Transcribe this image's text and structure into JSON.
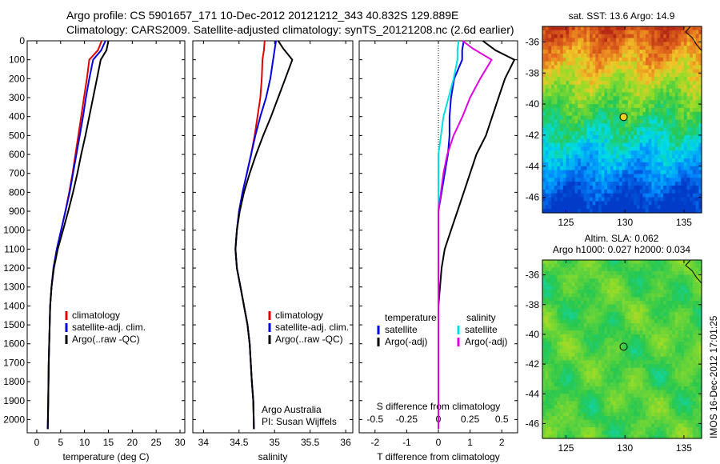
{
  "titles": {
    "line1": "Argo profile: CS 5901657_171 10-Dec-2012 20121212_343 40.832S 129.889E",
    "line2": "Climatology: CARS2009. Satellite-adjusted climatology: synTS_20121208.nc (2.6d earlier)"
  },
  "colors": {
    "climatology": "#e00000",
    "satellite": "#0000e0",
    "argo": "#000000",
    "sal_satellite": "#00e0e0",
    "sal_argo": "#e000e0"
  },
  "depth_ticks": [
    "0",
    "100",
    "200",
    "300",
    "400",
    "500",
    "600",
    "700",
    "800",
    "900",
    "1000",
    "1100",
    "1200",
    "1300",
    "1400",
    "1500",
    "1600",
    "1700",
    "1800",
    "1900",
    "2000"
  ],
  "chart_data": [
    {
      "type": "line",
      "xlabel": "temperature (deg C)",
      "xticks": [
        "0",
        "5",
        "10",
        "15",
        "20",
        "25",
        "30"
      ],
      "xlim": [
        -2,
        31
      ],
      "ylim": [
        2070,
        0
      ],
      "legend": [
        "climatology",
        "satellite-adj. clim.",
        "Argo(..raw -QC)"
      ],
      "series": [
        {
          "name": "climatology",
          "x": [
            13.6,
            12.8,
            11.0,
            10.5,
            9.9,
            9.3,
            8.7,
            8.1,
            7.5,
            6.8,
            6.0,
            5.1,
            4.2,
            3.5,
            3.1,
            2.8,
            2.7,
            2.6,
            2.5,
            2.4,
            2.3
          ],
          "y": [
            0,
            50,
            100,
            200,
            300,
            400,
            500,
            600,
            700,
            800,
            900,
            1000,
            1100,
            1200,
            1300,
            1400,
            1500,
            1600,
            1700,
            1900,
            2050
          ]
        },
        {
          "name": "satellite-adj. clim.",
          "x": [
            14.4,
            13.5,
            11.8,
            11.0,
            10.3,
            9.7,
            9.0,
            8.3,
            7.6,
            6.9,
            6.0,
            5.1,
            4.2,
            3.5,
            3.1,
            2.8,
            2.7,
            2.6,
            2.5,
            2.4,
            2.3
          ],
          "y": [
            0,
            50,
            100,
            200,
            300,
            400,
            500,
            600,
            700,
            800,
            900,
            1000,
            1100,
            1200,
            1300,
            1400,
            1500,
            1600,
            1700,
            1900,
            2050
          ]
        },
        {
          "name": "Argo(..raw -QC)",
          "x": [
            15.0,
            14.6,
            13.4,
            12.6,
            11.8,
            11.0,
            10.2,
            9.3,
            8.5,
            7.6,
            6.6,
            5.5,
            4.4,
            3.6,
            3.1,
            2.8,
            2.7,
            2.6,
            2.5,
            2.4,
            2.3
          ],
          "y": [
            0,
            50,
            100,
            200,
            300,
            400,
            500,
            600,
            700,
            800,
            900,
            1000,
            1100,
            1200,
            1300,
            1400,
            1500,
            1600,
            1700,
            1900,
            2050
          ]
        }
      ]
    },
    {
      "type": "line",
      "xlabel": "salinity",
      "xticks": [
        "34",
        "34.5",
        "35",
        "35.5",
        "36"
      ],
      "xlim": [
        33.85,
        36.1
      ],
      "ylim": [
        2070,
        0
      ],
      "legend": [
        "climatology",
        "satellite-adj. clim.",
        "Argo(..raw -QC)"
      ],
      "annotation": [
        "Argo Australia",
        "PI: Susan Wijffels"
      ],
      "series": [
        {
          "name": "climatology",
          "x": [
            34.86,
            34.85,
            34.83,
            34.82,
            34.8,
            34.76,
            34.72,
            34.67,
            34.61,
            34.55,
            34.5,
            34.47,
            34.45,
            34.47,
            34.52,
            34.57,
            34.62,
            34.65,
            34.68,
            34.7,
            34.71
          ],
          "y": [
            0,
            50,
            100,
            200,
            300,
            400,
            500,
            600,
            700,
            800,
            900,
            1000,
            1100,
            1200,
            1300,
            1400,
            1500,
            1600,
            1800,
            1900,
            2050
          ]
        },
        {
          "name": "satellite-adj. clim.",
          "x": [
            35.02,
            35.0,
            34.98,
            34.94,
            34.88,
            34.8,
            34.73,
            34.67,
            34.61,
            34.55,
            34.5,
            34.47,
            34.45,
            34.47,
            34.52,
            34.57,
            34.62,
            34.65,
            34.68,
            34.7,
            34.71
          ],
          "y": [
            0,
            50,
            100,
            200,
            300,
            400,
            500,
            600,
            700,
            800,
            900,
            1000,
            1100,
            1200,
            1300,
            1400,
            1500,
            1600,
            1800,
            1900,
            2050
          ]
        },
        {
          "name": "Argo(..raw -QC)",
          "x": [
            35.05,
            35.12,
            35.25,
            35.15,
            35.05,
            34.95,
            34.84,
            34.74,
            34.65,
            34.57,
            34.51,
            34.47,
            34.45,
            34.47,
            34.52,
            34.57,
            34.62,
            34.65,
            34.68,
            34.7,
            34.71
          ],
          "y": [
            0,
            40,
            100,
            200,
            300,
            400,
            500,
            600,
            700,
            800,
            900,
            1000,
            1100,
            1200,
            1300,
            1400,
            1500,
            1600,
            1800,
            1900,
            2050
          ]
        }
      ]
    },
    {
      "type": "line",
      "xlabel": "T difference from climatology",
      "xlabel_top": "S difference from climatology",
      "xticks": [
        "-2",
        "-1",
        "0",
        "1",
        "2"
      ],
      "xticks_top": [
        "-0.5",
        "-0.25",
        "0",
        "0.25",
        "0.5"
      ],
      "xlim": [
        -2.5,
        2.5
      ],
      "ylim": [
        2070,
        0
      ],
      "legend_temperature": {
        "title": "temperature",
        "items": [
          "satellite",
          "Argo(-adj)"
        ]
      },
      "legend_salinity": {
        "title": "salinity",
        "items": [
          "satellite",
          "Argo(-adj)"
        ]
      },
      "series": [
        {
          "name": "T satellite",
          "x": [
            0.8,
            0.75,
            0.75,
            0.5,
            0.4,
            0.35,
            0.35,
            0.3,
            0.2,
            0.1,
            0.0,
            0.0,
            0.0,
            0.0,
            0.0,
            0.0,
            0.0,
            0.0
          ],
          "y": [
            0,
            50,
            100,
            200,
            300,
            400,
            500,
            600,
            700,
            800,
            900,
            1000,
            1100,
            1200,
            1400,
            1600,
            1800,
            2050
          ]
        },
        {
          "name": "T Argo(-adj)",
          "x": [
            1.4,
            1.8,
            2.4,
            2.1,
            1.9,
            1.7,
            1.5,
            1.2,
            1.0,
            0.8,
            0.6,
            0.4,
            0.2,
            0.1,
            0.0,
            0.0,
            0.0,
            0.0
          ],
          "y": [
            0,
            50,
            100,
            200,
            300,
            400,
            500,
            600,
            700,
            800,
            900,
            1000,
            1100,
            1200,
            1400,
            1600,
            1800,
            2050
          ]
        },
        {
          "name": "S satellite",
          "x": [
            0.16,
            0.15,
            0.15,
            0.12,
            0.08,
            0.04,
            0.02,
            0.0,
            0.0,
            0.0,
            0.0,
            0.0,
            0.0
          ],
          "y": [
            0,
            50,
            100,
            200,
            300,
            400,
            500,
            600,
            800,
            1000,
            1400,
            1800,
            2050
          ]
        },
        {
          "name": "S Argo(-adj)",
          "x": [
            0.19,
            0.27,
            0.42,
            0.33,
            0.25,
            0.19,
            0.12,
            0.07,
            0.04,
            0.0,
            0.0,
            0.0
          ],
          "y": [
            0,
            40,
            100,
            200,
            300,
            400,
            500,
            600,
            700,
            900,
            1400,
            2050
          ]
        }
      ]
    },
    {
      "type": "heatmap",
      "title": "sat. SST: 13.6  Argo: 14.9",
      "xticks": [
        "125",
        "130",
        "135"
      ],
      "yticks": [
        "-36",
        "-38",
        "-40",
        "-42",
        "-44",
        "-46"
      ],
      "xlim": [
        123,
        136.5
      ],
      "ylim": [
        -47,
        -35
      ],
      "marker": {
        "lon": 129.889,
        "lat": -40.832
      }
    },
    {
      "type": "heatmap",
      "title": "Altim. SLA: 0.062",
      "subtitle": "Argo h1000: 0.027  h2000: 0.034",
      "xticks": [
        "125",
        "130",
        "135"
      ],
      "yticks": [
        "-36",
        "-38",
        "-40",
        "-42",
        "-44",
        "-46"
      ],
      "xlim": [
        123,
        136.5
      ],
      "ylim": [
        -47,
        -35
      ],
      "marker": {
        "lon": 129.889,
        "lat": -40.832
      }
    }
  ],
  "side_label": "IMOS 16-Dec-2012 17:01:25"
}
